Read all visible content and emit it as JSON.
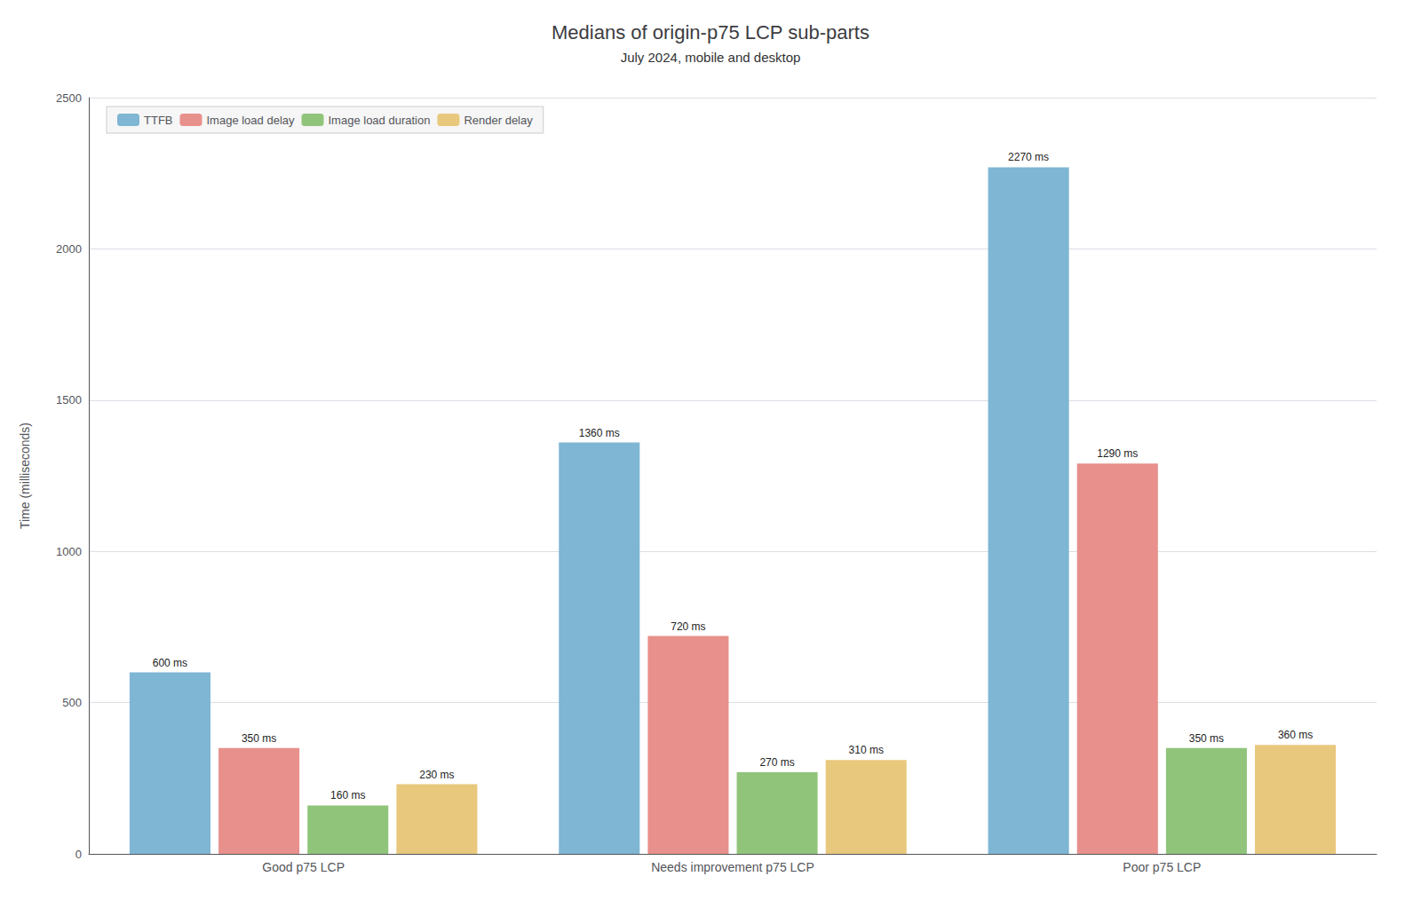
{
  "chart_data": {
    "type": "bar",
    "title": "Medians of origin-p75 LCP sub-parts",
    "subtitle": "July 2024, mobile and desktop",
    "ylabel": "Time (milliseconds)",
    "categories": [
      "Good p75 LCP",
      "Needs improvement p75 LCP",
      "Poor p75 LCP"
    ],
    "series": [
      {
        "name": "TTFB",
        "color": "#7eb6d4",
        "values": [
          600,
          1360,
          2270
        ],
        "value_labels": [
          "600 ms",
          "1360 ms",
          "2270 ms"
        ]
      },
      {
        "name": "Image load delay",
        "color": "#e8908c",
        "values": [
          350,
          720,
          1290
        ],
        "value_labels": [
          "350 ms",
          "720 ms",
          "1290 ms"
        ]
      },
      {
        "name": "Image load duration",
        "color": "#90c47a",
        "values": [
          160,
          270,
          350
        ],
        "value_labels": [
          "160 ms",
          "270 ms",
          "350 ms"
        ]
      },
      {
        "name": "Render delay",
        "color": "#e8c87c",
        "values": [
          230,
          310,
          360
        ],
        "value_labels": [
          "230 ms",
          "310 ms",
          "360 ms"
        ]
      }
    ],
    "ylim": [
      0,
      2500
    ],
    "yticks": [
      0,
      500,
      1000,
      1500,
      2000,
      2500
    ],
    "grid": true,
    "legend": "upper left",
    "data_labels": true
  }
}
